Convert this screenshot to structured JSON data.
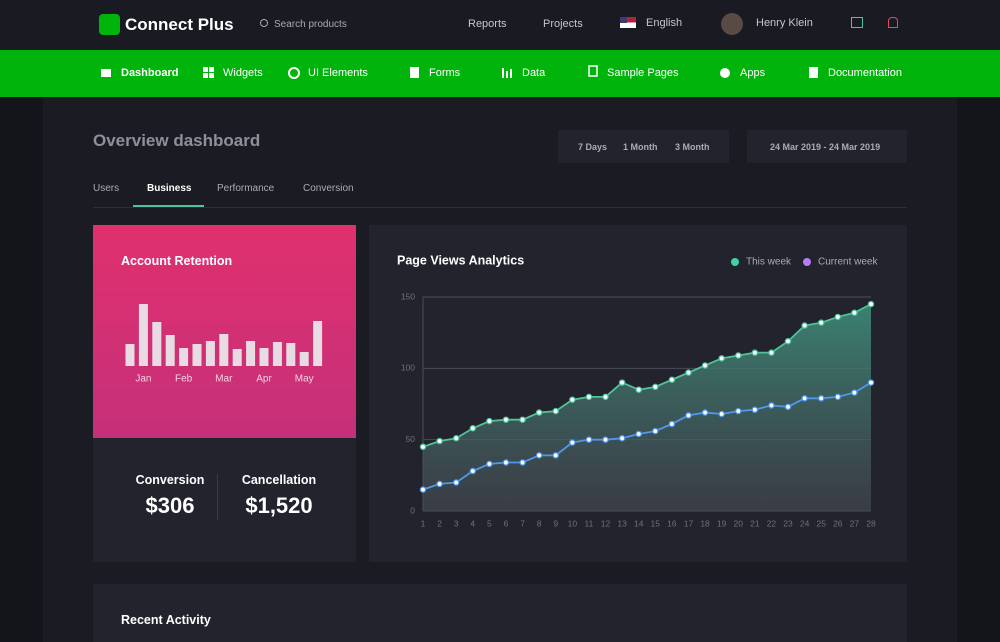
{
  "header": {
    "brand": "Connect Plus",
    "search": "Search products",
    "nav": [
      "Reports",
      "Projects"
    ],
    "language": "English",
    "user": "Henry Klein"
  },
  "menu": [
    "Dashboard",
    "Widgets",
    "UI Elements",
    "Forms",
    "Data",
    "Sample Pages",
    "Apps",
    "Documentation"
  ],
  "page": {
    "title": "Overview dashboard",
    "ranges": [
      "7 Days",
      "1 Month",
      "3 Month"
    ],
    "date_range": "24 Mar 2019 - 24 Mar 2019",
    "tabs": [
      "Users",
      "Business",
      "Performance",
      "Conversion"
    ],
    "active_tab": "Business"
  },
  "retention": {
    "title": "Account Retention",
    "stats": [
      {
        "label": "Conversion",
        "value": "$306"
      },
      {
        "label": "Cancellation",
        "value": "$1,520"
      }
    ]
  },
  "recent": {
    "title": "Recent Activity"
  },
  "chart_data": [
    {
      "type": "bar",
      "categories": [
        null,
        "Jan",
        null,
        null,
        "Feb",
        null,
        null,
        "Mar",
        null,
        null,
        "Apr",
        null,
        null,
        "May",
        null
      ],
      "values": [
        22,
        62,
        44,
        31,
        18,
        22,
        25,
        32,
        17,
        25,
        18,
        24,
        23,
        14,
        45
      ],
      "color": "#e8dbe4",
      "ylim": [
        0,
        70
      ]
    },
    {
      "type": "line",
      "title": "Page Views Analytics",
      "x": [
        1,
        2,
        3,
        4,
        5,
        6,
        7,
        8,
        9,
        10,
        11,
        12,
        13,
        14,
        15,
        16,
        17,
        18,
        19,
        20,
        21,
        22,
        23,
        24,
        25,
        26,
        27,
        28
      ],
      "xlim": [
        1,
        28
      ],
      "xticks": [
        1,
        2,
        3,
        4,
        5,
        6,
        7,
        8,
        9,
        10,
        11,
        12,
        13,
        14,
        15,
        16,
        17,
        18,
        19,
        20,
        21,
        22,
        23,
        24,
        25,
        26,
        27,
        28
      ],
      "ylim": [
        0,
        150
      ],
      "yticks": [
        0,
        50,
        100,
        150
      ],
      "grid": true,
      "legend": "top-right",
      "series": [
        {
          "name": "This week",
          "color": "#4fc39a",
          "legend_color": "#3ed3a0",
          "values": [
            45,
            49,
            51,
            58,
            63,
            64,
            64,
            69,
            70,
            78,
            80,
            80,
            90,
            85,
            87,
            92,
            97,
            102,
            107,
            109,
            111,
            111,
            119,
            130,
            132,
            136,
            139,
            145
          ]
        },
        {
          "name": "Current week",
          "color": "#4f98ee",
          "legend_color": "#b87cf3",
          "values": [
            15,
            19,
            20,
            28,
            33,
            34,
            34,
            39,
            39,
            48,
            50,
            50,
            51,
            54,
            56,
            61,
            67,
            69,
            68,
            70,
            71,
            74,
            73,
            79,
            79,
            80,
            83,
            90
          ]
        }
      ]
    }
  ]
}
